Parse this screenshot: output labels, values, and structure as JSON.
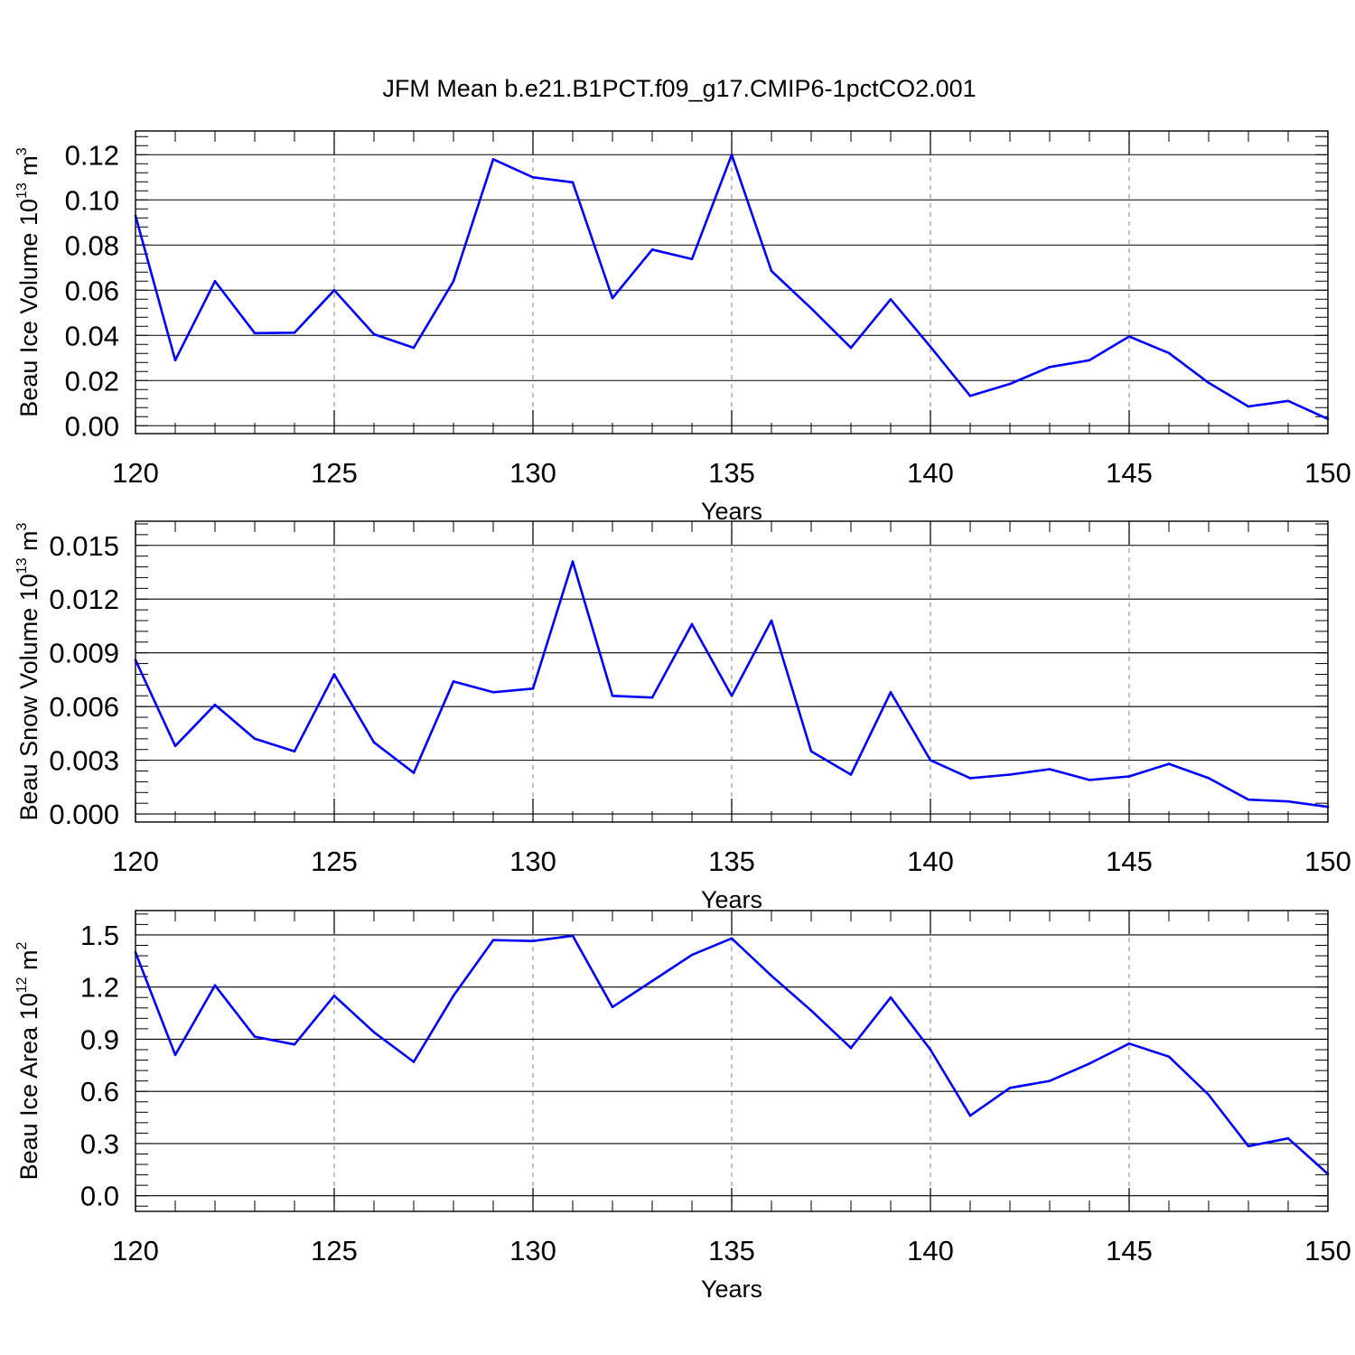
{
  "title": "JFM Mean b.e21.B1PCT.f09_g17.CMIP6-1pctCO2.001",
  "colors": {
    "line": "#0000ff",
    "axis": "#000000",
    "grid": "#999999",
    "background": "#ffffff"
  },
  "chart_data": [
    {
      "type": "line",
      "ylabel": {
        "text": "Beau Ice Volume 10",
        "exp": "13",
        "unit": " m",
        "unit_exp": "3"
      },
      "xlabel": "Years",
      "xlim": [
        120,
        150
      ],
      "ylim": [
        -0.0035,
        0.1305
      ],
      "x_major_ticks": [
        120,
        125,
        130,
        135,
        140,
        145,
        150
      ],
      "x_tick_labels": [
        "120",
        "125",
        "130",
        "135",
        "140",
        "145",
        "150"
      ],
      "y_major_ticks": [
        0,
        0.02,
        0.04,
        0.06,
        0.08,
        0.1,
        0.12
      ],
      "y_tick_labels": [
        "0.00",
        "0.02",
        "0.04",
        "0.06",
        "0.08",
        "0.10",
        "0.12"
      ],
      "y_minor_step": 0.004,
      "vertical_grid": [
        125,
        130,
        135,
        140,
        145
      ],
      "x": [
        120,
        121,
        122,
        123,
        124,
        125,
        126,
        127,
        128,
        129,
        130,
        131,
        132,
        133,
        134,
        135,
        136,
        137,
        138,
        139,
        140,
        141,
        142,
        143,
        144,
        145,
        146,
        147,
        148,
        149,
        150
      ],
      "series": [
        {
          "values": [
            0.093,
            0.029,
            0.064,
            0.041,
            0.0412,
            0.06,
            0.0405,
            0.0345,
            0.064,
            0.118,
            0.11,
            0.1078,
            0.0565,
            0.078,
            0.0738,
            0.12,
            0.0685,
            0.052,
            0.0345,
            0.056,
            0.035,
            0.0132,
            0.0185,
            0.026,
            0.029,
            0.0395,
            0.0322,
            0.019,
            0.0085,
            0.011,
            0.003
          ]
        }
      ]
    },
    {
      "type": "line",
      "ylabel": {
        "text": "Beau Snow Volume 10",
        "exp": "13",
        "unit": " m",
        "unit_exp": "3"
      },
      "xlabel": "Years",
      "xlim": [
        120,
        150
      ],
      "ylim": [
        -0.00045,
        0.01635
      ],
      "x_major_ticks": [
        120,
        125,
        130,
        135,
        140,
        145,
        150
      ],
      "x_tick_labels": [
        "120",
        "125",
        "130",
        "135",
        "140",
        "145",
        "150"
      ],
      "y_major_ticks": [
        0,
        0.003,
        0.006,
        0.009,
        0.012,
        0.015
      ],
      "y_tick_labels": [
        "0.000",
        "0.003",
        "0.006",
        "0.009",
        "0.012",
        "0.015"
      ],
      "y_minor_step": 0.0006,
      "vertical_grid": [
        125,
        130,
        135,
        140,
        145
      ],
      "x": [
        120,
        121,
        122,
        123,
        124,
        125,
        126,
        127,
        128,
        129,
        130,
        131,
        132,
        133,
        134,
        135,
        136,
        137,
        138,
        139,
        140,
        141,
        142,
        143,
        144,
        145,
        146,
        147,
        148,
        149,
        150
      ],
      "series": [
        {
          "values": [
            0.0086,
            0.0038,
            0.0061,
            0.0042,
            0.0035,
            0.0078,
            0.004,
            0.0023,
            0.0074,
            0.0068,
            0.007,
            0.0141,
            0.0066,
            0.0065,
            0.0106,
            0.0066,
            0.0108,
            0.0035,
            0.0022,
            0.0068,
            0.003,
            0.002,
            0.0022,
            0.0025,
            0.0019,
            0.0021,
            0.0028,
            0.002,
            0.0008,
            0.0007,
            0.0004
          ]
        }
      ]
    },
    {
      "type": "line",
      "ylabel": {
        "text": "Beau Ice Area 10",
        "exp": "12",
        "unit": " m",
        "unit_exp": "2"
      },
      "xlabel": "Years",
      "xlim": [
        120,
        150
      ],
      "ylim": [
        -0.09,
        1.64
      ],
      "x_major_ticks": [
        120,
        125,
        130,
        135,
        140,
        145,
        150
      ],
      "x_tick_labels": [
        "120",
        "125",
        "130",
        "135",
        "140",
        "145",
        "150"
      ],
      "y_major_ticks": [
        0,
        0.3,
        0.6,
        0.9,
        1.2,
        1.5
      ],
      "y_tick_labels": [
        "0.0",
        "0.3",
        "0.6",
        "0.9",
        "1.2",
        "1.5"
      ],
      "y_minor_step": 0.06,
      "vertical_grid": [
        125,
        130,
        135,
        140,
        145
      ],
      "x": [
        120,
        121,
        122,
        123,
        124,
        125,
        126,
        127,
        128,
        129,
        130,
        131,
        132,
        133,
        134,
        135,
        136,
        137,
        138,
        139,
        140,
        141,
        142,
        143,
        144,
        145,
        146,
        147,
        148,
        149,
        150
      ],
      "series": [
        {
          "values": [
            1.4,
            0.81,
            1.21,
            0.915,
            0.87,
            1.15,
            0.94,
            0.77,
            1.15,
            1.47,
            1.465,
            1.495,
            1.085,
            1.235,
            1.385,
            1.48,
            1.265,
            1.065,
            0.85,
            1.14,
            0.84,
            0.46,
            0.62,
            0.66,
            0.76,
            0.875,
            0.8,
            0.58,
            0.285,
            0.33,
            0.125
          ]
        }
      ]
    }
  ]
}
